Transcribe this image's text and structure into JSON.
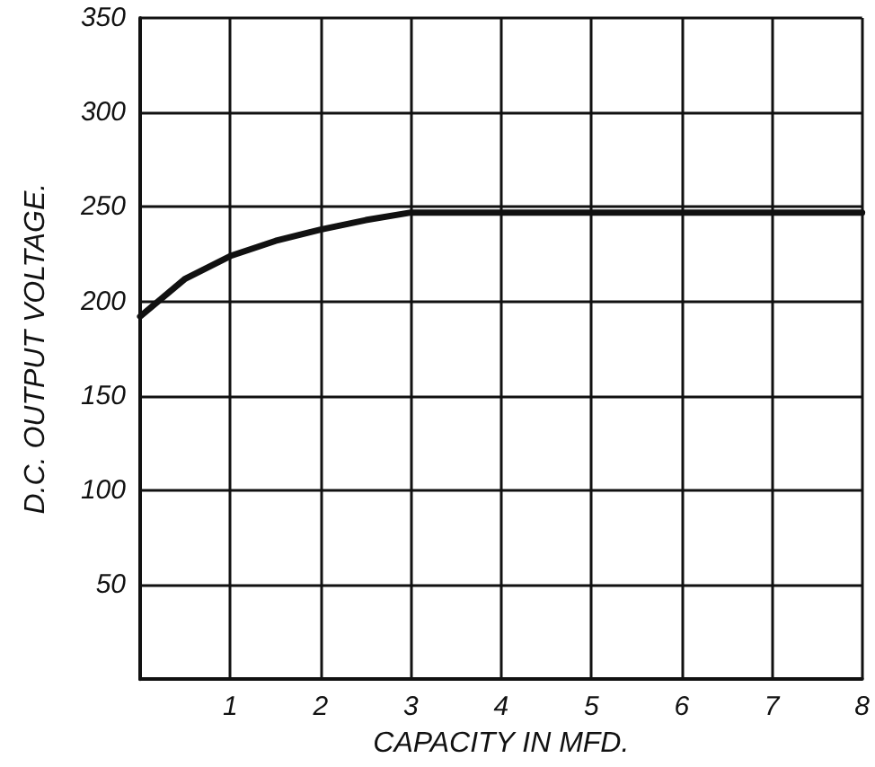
{
  "chart_data": {
    "type": "line",
    "xlabel": "CAPACITY IN MFD.",
    "ylabel": "D.C. OUTPUT VOLTAGE.",
    "x": [
      0,
      0.5,
      1,
      1.5,
      2,
      2.5,
      3,
      4,
      5,
      6,
      7,
      8
    ],
    "series": [
      {
        "color": "#111111",
        "values": [
          192,
          212,
          224,
          232,
          238,
          243,
          247,
          247,
          247,
          247,
          247,
          247
        ]
      }
    ],
    "xlim": [
      0,
      8
    ],
    "ylim": [
      0,
      350
    ],
    "xticks": [
      1,
      2,
      3,
      4,
      5,
      6,
      7,
      8
    ],
    "yticks": [
      50,
      100,
      150,
      200,
      250,
      300,
      350
    ],
    "grid": true,
    "marker": "none",
    "line_style": "solid"
  }
}
